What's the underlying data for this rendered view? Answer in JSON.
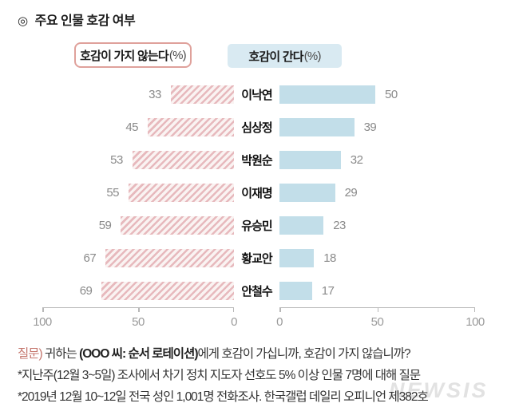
{
  "title": {
    "bullet": "◎",
    "text": "주요 인물 호감 여부"
  },
  "legend": {
    "negative": {
      "text": "호감이 가지 않는다",
      "pct": "(%)"
    },
    "positive": {
      "text": "호감이 간다",
      "pct": "(%)"
    }
  },
  "colors": {
    "legend-border": "#dfa19b",
    "legend-fill": "#d9eaf2",
    "negative-stripe": "#e7b9bd",
    "positive-fill": "#c2dee9",
    "value-label": "#8a8a8a",
    "axis": "#b8b8b8",
    "question-accent": "#c4756c"
  },
  "chart_data": {
    "type": "bar",
    "orientation": "horizontal-diverging",
    "title": "주요 인물 호감 여부",
    "categories": [
      "이낙연",
      "심상정",
      "박원순",
      "이재명",
      "유승민",
      "황교안",
      "안철수"
    ],
    "series": [
      {
        "name": "호감이 가지 않는다(%)",
        "values": [
          33,
          45,
          53,
          55,
          59,
          67,
          69
        ]
      },
      {
        "name": "호감이 간다(%)",
        "values": [
          50,
          39,
          32,
          29,
          23,
          18,
          17
        ]
      }
    ],
    "xlim": [
      0,
      100
    ],
    "axis_ticks_left": [
      "100",
      "50",
      "0"
    ],
    "axis_ticks_right": [
      "0",
      "50",
      "100"
    ],
    "legend_position": "top",
    "grid": false
  },
  "footnotes": {
    "question_label": "질문)",
    "question_pre": " 귀하는 ",
    "question_bold": "(OOO 씨: 순서 로테이션)",
    "question_post": "에게 호감이 가십니까, 호감이 가지 않습니까?",
    "note1": "*지난주(12월 3~5일) 조사에서 차기 정치 지도자 선호도 5% 이상 인물 7명에 대해 질문",
    "note2": "*2019년 12월 10~12일 전국 성인 1,001명 전화조사. 한국갤럽 데일리 오피니언 제382호"
  },
  "watermark": "NEWSIS"
}
